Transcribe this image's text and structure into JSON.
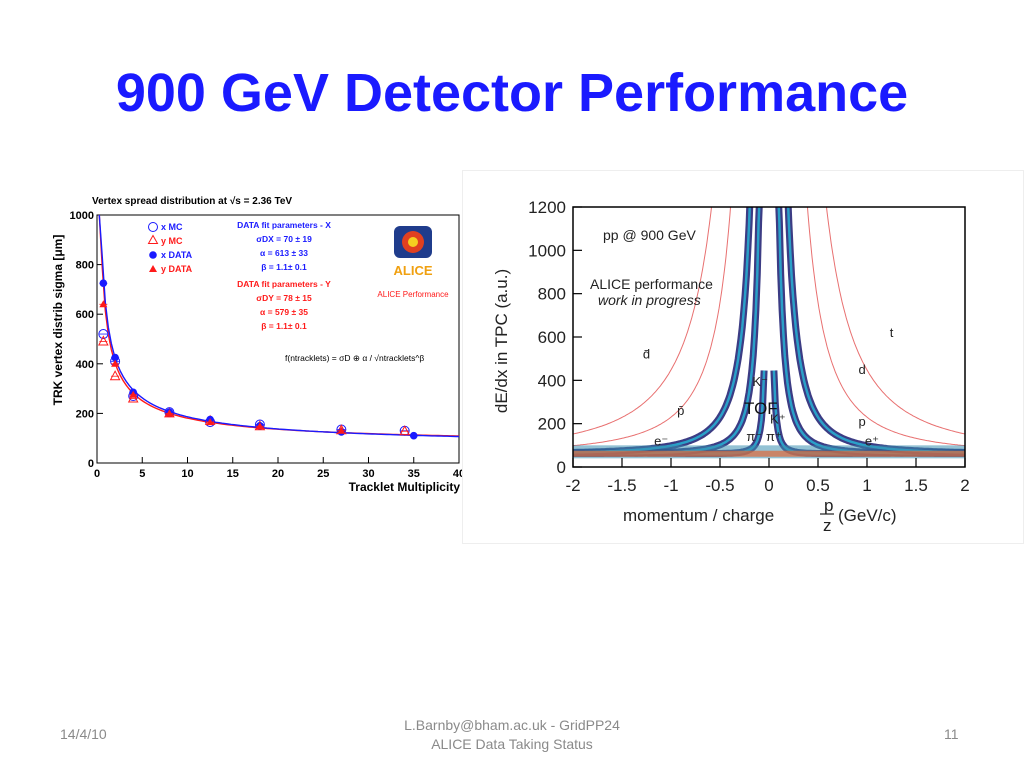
{
  "slide": {
    "title": "900 GeV Detector Performance",
    "footer_date": "14/4/10",
    "footer_center_line1": "L.Barnby@bham.ac.uk - GridPP24",
    "footer_center_line2": "ALICE Data Taking Status",
    "page_number": "11"
  },
  "chart_data": [
    {
      "type": "scatter",
      "title": "Vertex spread distribution at √s = 2.36 TeV",
      "xlabel": "Tracklet Multiplicity",
      "ylabel": "TRK  vertex distrib sigma [μm]",
      "xlim": [
        0,
        40
      ],
      "ylim": [
        0,
        1000
      ],
      "x_ticks": [
        "0",
        "5",
        "10",
        "15",
        "20",
        "25",
        "30",
        "35",
        "40"
      ],
      "y_ticks": [
        "0",
        "200",
        "400",
        "600",
        "800",
        "1000"
      ],
      "legend": [
        "x MC",
        "y MC",
        "x DATA",
        "y DATA"
      ],
      "legend_position": "top-left",
      "fit_box_x": [
        "DATA fit parameters - X",
        "σDX = 70 ± 19",
        "α = 613 ± 33",
        "β = 1.1± 0.1"
      ],
      "fit_box_y": [
        "DATA fit parameters - Y",
        "σDY = 78 ± 15",
        "α = 579 ± 35",
        "β = 1.1± 0.1"
      ],
      "formula": "f(ntracklets) = σD ⊕ α / √ntracklets^β",
      "logo_text": "ALICE",
      "annotation": "ALICE Performance",
      "series": [
        {
          "name": "x MC",
          "color": "#1a1aff",
          "marker": "open-circle",
          "x": [
            0.7,
            2,
            4,
            8,
            12.5,
            18,
            27,
            34
          ],
          "y": [
            520,
            410,
            270,
            205,
            165,
            155,
            135,
            130
          ]
        },
        {
          "name": "y MC",
          "color": "#ff1a1a",
          "marker": "open-triangle",
          "x": [
            0.7,
            2,
            4,
            8,
            12.5,
            18,
            27,
            34
          ],
          "y": [
            490,
            350,
            260,
            200,
            170,
            148,
            132,
            128
          ]
        },
        {
          "name": "x DATA",
          "color": "#1a1aff",
          "marker": "filled-circle",
          "x": [
            0.7,
            2,
            4,
            8,
            12.5,
            18,
            27,
            35
          ],
          "y": [
            725,
            425,
            285,
            205,
            175,
            150,
            125,
            110
          ]
        },
        {
          "name": "y DATA",
          "color": "#ff1a1a",
          "marker": "filled-triangle",
          "x": [
            0.7,
            2,
            4,
            8,
            12.5,
            18,
            27
          ],
          "y": [
            640,
            400,
            275,
            200,
            165,
            148,
            130
          ]
        }
      ]
    },
    {
      "type": "scatter",
      "xlabel": "momentum / charge",
      "xlabel_unit": "(GeV/c)",
      "ylabel": "dE/dx in TPC (a.u.)",
      "xlim": [
        -2,
        2
      ],
      "ylim": [
        0,
        1200
      ],
      "x_ticks": [
        "-2",
        "-1.5",
        "-1",
        "-0.5",
        "0",
        "0.5",
        "1",
        "1.5",
        "2"
      ],
      "y_ticks": [
        "0",
        "200",
        "400",
        "600",
        "800",
        "1000",
        "1200"
      ],
      "annotations": [
        "pp @ 900 GeV",
        "ALICE performance",
        "work in progress",
        "TOF"
      ],
      "particle_labels": [
        {
          "text": "t",
          "x": 1.25,
          "y": 600
        },
        {
          "text": "d",
          "x": 0.95,
          "y": 430
        },
        {
          "text": "p",
          "x": 0.95,
          "y": 190
        },
        {
          "text": "d̄",
          "x": -1.25,
          "y": 500
        },
        {
          "text": "p̄",
          "x": -0.9,
          "y": 240
        },
        {
          "text": "K⁻",
          "x": -0.09,
          "y": 375
        },
        {
          "text": "K⁺",
          "x": 0.09,
          "y": 200
        },
        {
          "text": "π⁻",
          "x": -0.15,
          "y": 120
        },
        {
          "text": "π⁺",
          "x": 0.05,
          "y": 120
        },
        {
          "text": "e⁻",
          "x": -1.1,
          "y": 100
        },
        {
          "text": "e⁺",
          "x": 1.05,
          "y": 100
        }
      ],
      "bands": [
        {
          "name": "pion",
          "mass": 0.14
        },
        {
          "name": "kaon",
          "mass": 0.49
        },
        {
          "name": "proton",
          "mass": 0.94
        },
        {
          "name": "deuteron",
          "mass": 1.88
        },
        {
          "name": "triton",
          "mass": 2.81
        }
      ],
      "colors": {
        "line": "#e87070",
        "band": "#1a1a6e",
        "band_core": "#2aa0c8"
      }
    }
  ]
}
